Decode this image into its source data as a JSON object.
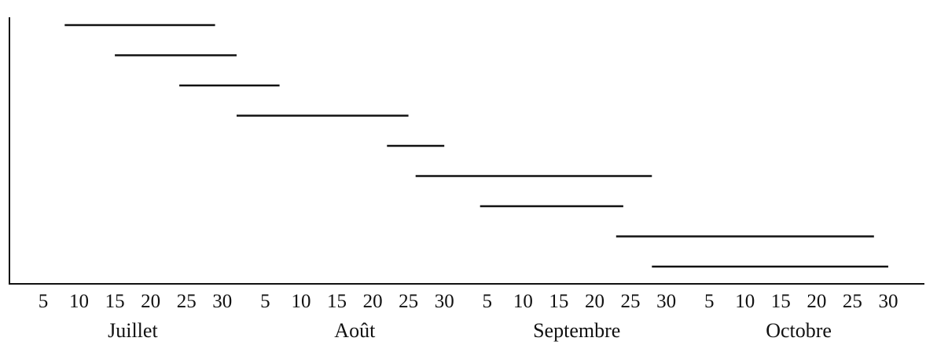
{
  "chart_data": {
    "type": "gantt",
    "axis_color": "#111111",
    "bar_color": "#111111",
    "x_ticks": [
      {
        "month": 0,
        "day": 5,
        "label": "5"
      },
      {
        "month": 0,
        "day": 10,
        "label": "10"
      },
      {
        "month": 0,
        "day": 15,
        "label": "15"
      },
      {
        "month": 0,
        "day": 20,
        "label": "20"
      },
      {
        "month": 0,
        "day": 25,
        "label": "25"
      },
      {
        "month": 0,
        "day": 30,
        "label": "30"
      },
      {
        "month": 1,
        "day": 5,
        "label": "5"
      },
      {
        "month": 1,
        "day": 10,
        "label": "10"
      },
      {
        "month": 1,
        "day": 15,
        "label": "15"
      },
      {
        "month": 1,
        "day": 20,
        "label": "20"
      },
      {
        "month": 1,
        "day": 25,
        "label": "25"
      },
      {
        "month": 1,
        "day": 30,
        "label": "30"
      },
      {
        "month": 2,
        "day": 5,
        "label": "5"
      },
      {
        "month": 2,
        "day": 10,
        "label": "10"
      },
      {
        "month": 2,
        "day": 15,
        "label": "15"
      },
      {
        "month": 2,
        "day": 20,
        "label": "20"
      },
      {
        "month": 2,
        "day": 25,
        "label": "25"
      },
      {
        "month": 2,
        "day": 30,
        "label": "30"
      },
      {
        "month": 3,
        "day": 5,
        "label": "5"
      },
      {
        "month": 3,
        "day": 10,
        "label": "10"
      },
      {
        "month": 3,
        "day": 15,
        "label": "15"
      },
      {
        "month": 3,
        "day": 20,
        "label": "20"
      },
      {
        "month": 3,
        "day": 25,
        "label": "25"
      },
      {
        "month": 3,
        "day": 30,
        "label": "30"
      }
    ],
    "months": [
      {
        "label": "Juillet"
      },
      {
        "label": "Août"
      },
      {
        "label": "Septembre"
      },
      {
        "label": "Octobre"
      }
    ],
    "bars": [
      {
        "start": {
          "month": 0,
          "day": 8
        },
        "end": {
          "month": 0,
          "day": 29
        }
      },
      {
        "start": {
          "month": 0,
          "day": 15
        },
        "end": {
          "month": 1,
          "day": 1
        }
      },
      {
        "start": {
          "month": 0,
          "day": 24
        },
        "end": {
          "month": 1,
          "day": 7
        }
      },
      {
        "start": {
          "month": 1,
          "day": 1
        },
        "end": {
          "month": 1,
          "day": 25
        }
      },
      {
        "start": {
          "month": 1,
          "day": 22
        },
        "end": {
          "month": 1,
          "day": 30
        }
      },
      {
        "start": {
          "month": 1,
          "day": 26
        },
        "end": {
          "month": 2,
          "day": 28
        }
      },
      {
        "start": {
          "month": 2,
          "day": 4
        },
        "end": {
          "month": 2,
          "day": 24
        }
      },
      {
        "start": {
          "month": 2,
          "day": 23
        },
        "end": {
          "month": 3,
          "day": 28
        }
      },
      {
        "start": {
          "month": 2,
          "day": 28
        },
        "end": {
          "month": 3,
          "day": 30
        }
      }
    ],
    "xlabel": "",
    "ylabel": "",
    "title": ""
  }
}
